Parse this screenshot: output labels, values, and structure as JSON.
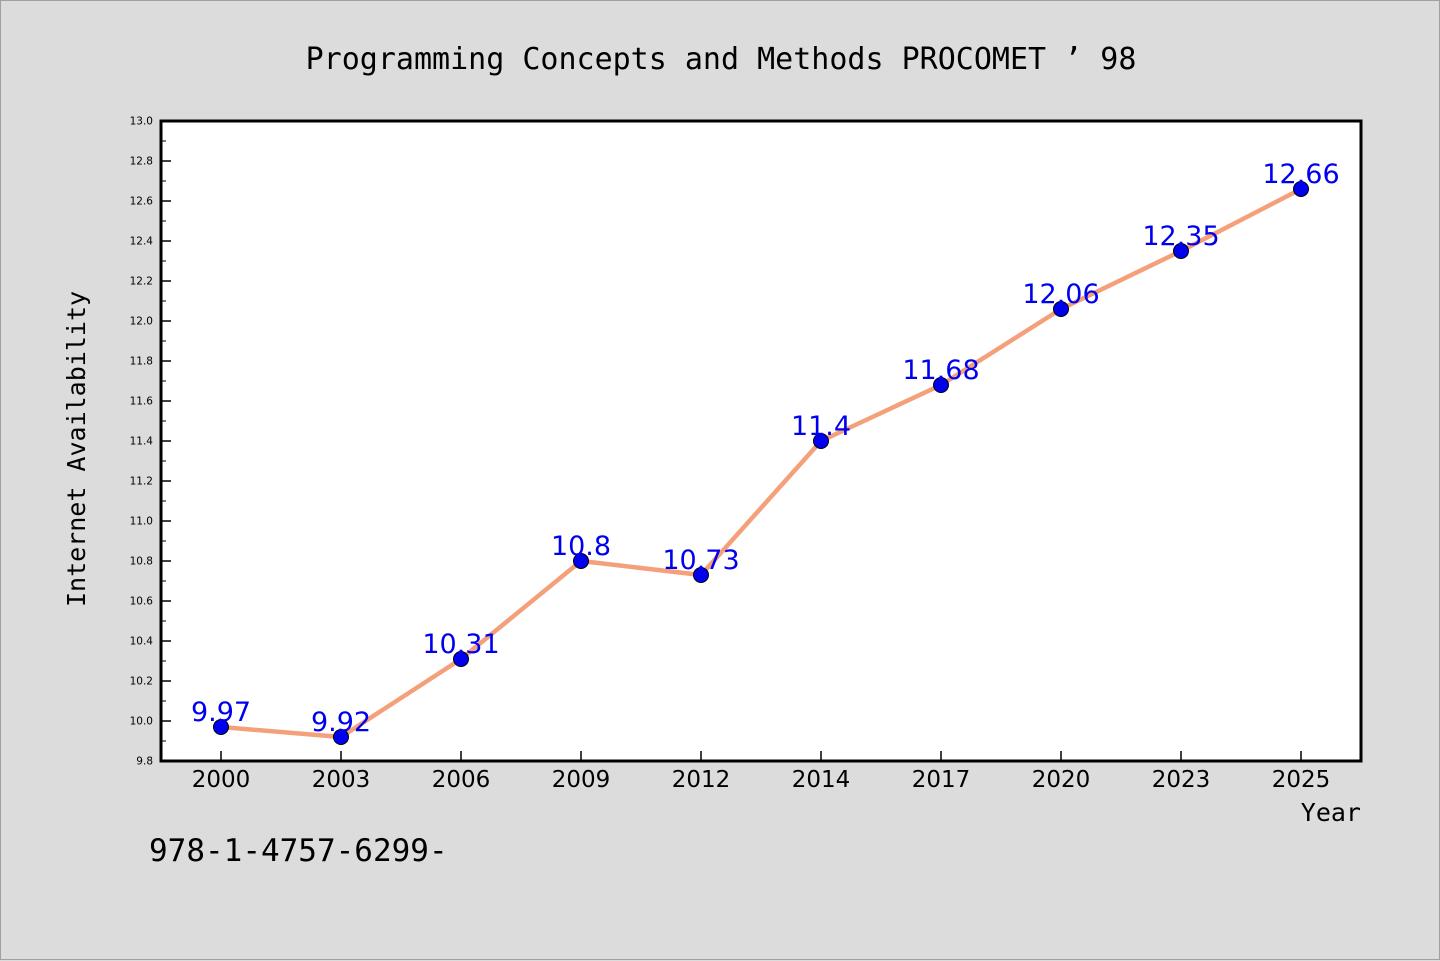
{
  "footer_text": "978-1-4757-6299-",
  "chart_data": {
    "type": "line",
    "title": "Programming Concepts and Methods PROCOMET ’ 98",
    "xlabel": "Year",
    "ylabel": "Internet Availability",
    "categories": [
      "2000",
      "2003",
      "2006",
      "2009",
      "2012",
      "2014",
      "2017",
      "2020",
      "2023",
      "2025"
    ],
    "series": [
      {
        "values": [
          9.97,
          9.92,
          10.31,
          10.8,
          10.73,
          11.4,
          11.68,
          12.06,
          12.35,
          12.66
        ],
        "data_labels": [
          "9.97",
          "9.92",
          "10.31",
          "10.8",
          "10.73",
          "11.4",
          "11.68",
          "12.06",
          "12.35",
          "12.66"
        ],
        "line_color": "#f4a07a",
        "marker_color": "#0000ee",
        "label_color": "#0000ee"
      }
    ],
    "ylim": [
      9.8,
      13.0
    ],
    "yticks": [
      "9.8",
      "10.0",
      "10.2",
      "10.4",
      "10.6",
      "10.8",
      "11.0",
      "11.2",
      "11.4",
      "11.6",
      "11.8",
      "12.0",
      "12.2",
      "12.4",
      "12.6",
      "12.8",
      "13.0"
    ],
    "grid": false,
    "legend": false,
    "plot_background": "#ffffff",
    "figure_background": "#dcdcdc"
  }
}
